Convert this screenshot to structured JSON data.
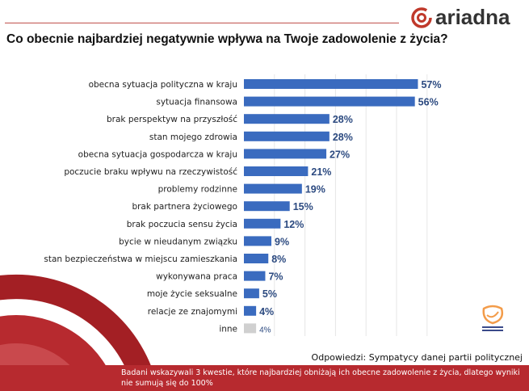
{
  "brand": {
    "logo": "ariadna",
    "accent": "#c0392b"
  },
  "chart_data": {
    "type": "bar",
    "orientation": "horizontal",
    "title": "Co obecnie najbardziej  negatywnie wpływa na Twoje zadowolenie z życia?",
    "categories": [
      "obecna sytuacja polityczna w kraju",
      "sytuacja finansowa",
      "brak perspektyw na przyszłość",
      "stan mojego zdrowia",
      "obecna sytuacja gospodarcza w kraju",
      "poczucie braku wpływu na rzeczywistość",
      "problemy rodzinne",
      "brak partnera życiowego",
      "brak poczucia sensu życia",
      "bycie w nieudanym związku",
      "stan bezpieczeństwa w miejscu zamieszkania",
      "wykonywana praca",
      "moje życie seksualne",
      "relacje ze znajomymi",
      "inne"
    ],
    "values": [
      57,
      56,
      28,
      28,
      27,
      21,
      19,
      15,
      12,
      9,
      8,
      7,
      5,
      4,
      4
    ],
    "labels": [
      "57%",
      "56%",
      "28%",
      "28%",
      "27%",
      "21%",
      "19%",
      "15%",
      "12%",
      "9%",
      "8%",
      "7%",
      "5%",
      "4%",
      "4%"
    ],
    "colors": {
      "main": "#3a6bbf",
      "other": "#d0d0d0"
    },
    "xlim": [
      0,
      60
    ],
    "grid": true
  },
  "respondents": "Odpowiedzi:  Sympatycy danej partii politycznej",
  "footnote": "Badani wskazywali 3 kwestie, które najbardziej obniżają ich obecne zadowolenie z życia, dlatego wyniki nie sumują się do 100%",
  "party_logo": "Platforma Obywatelska"
}
